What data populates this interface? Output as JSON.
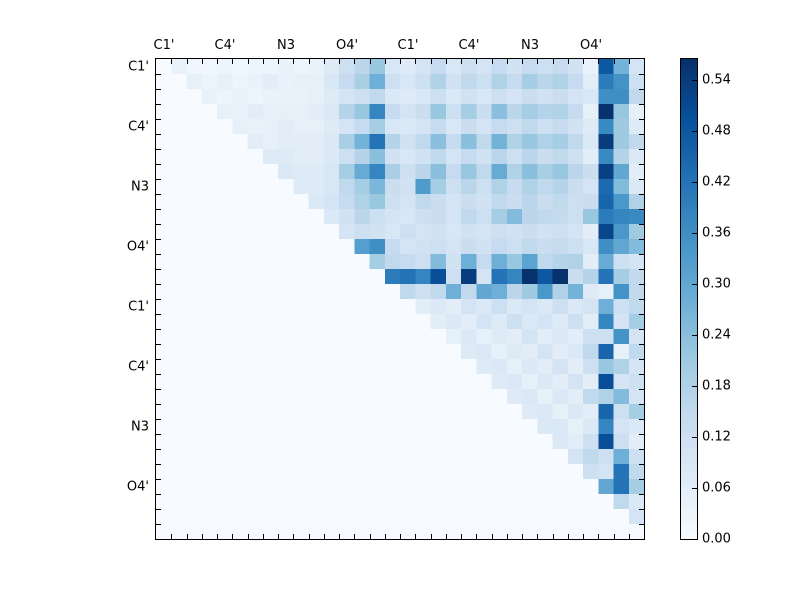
{
  "figure": {
    "background": "#ffffff",
    "border_color": "#000000"
  },
  "chart_data": {
    "type": "heatmap",
    "title": "",
    "xlabel": "",
    "ylabel": "",
    "grid_size": 32,
    "colormap": "Blues",
    "colormap_stops": [
      "#f7fbff",
      "#deebf7",
      "#c6dbef",
      "#9ecae1",
      "#6baed6",
      "#4292c6",
      "#2171b5",
      "#08519c",
      "#08306b"
    ],
    "vmin": 0.0,
    "vmax": 0.565,
    "x_tick_labels": [
      "C1'",
      "C4'",
      "N3",
      "O4'",
      "C1'",
      "C4'",
      "N3",
      "O4'"
    ],
    "y_tick_labels": [
      "C1'",
      "C4'",
      "N3",
      "O4'",
      "C1'",
      "C4'",
      "N3",
      "O4'"
    ],
    "tick_label_cell_positions": [
      0,
      4,
      8,
      12,
      16,
      20,
      24,
      28
    ],
    "minor_ticks_every_cell": true,
    "colorbar": {
      "position": "right",
      "tick_labels": [
        "0.00",
        "0.06",
        "0.12",
        "0.18",
        "0.24",
        "0.30",
        "0.36",
        "0.42",
        "0.48",
        "0.54"
      ],
      "tick_values": [
        0.0,
        0.06,
        0.12,
        0.18,
        0.24,
        0.3,
        0.36,
        0.42,
        0.48,
        0.54
      ]
    },
    "values": [
      [
        0,
        0.04,
        0.02,
        0.02,
        0.03,
        0.02,
        0.03,
        0.03,
        0.04,
        0.03,
        0.04,
        0.07,
        0.12,
        0.16,
        0.22,
        0.09,
        0.07,
        0.1,
        0.14,
        0.09,
        0.12,
        0.1,
        0.14,
        0.11,
        0.14,
        0.12,
        0.14,
        0.11,
        0.04,
        0.48,
        0.27,
        0.1
      ],
      [
        0,
        0,
        0.05,
        0.03,
        0.05,
        0.03,
        0.04,
        0.06,
        0.04,
        0.05,
        0.05,
        0.09,
        0.14,
        0.19,
        0.28,
        0.12,
        0.09,
        0.12,
        0.18,
        0.11,
        0.15,
        0.12,
        0.18,
        0.14,
        0.2,
        0.16,
        0.18,
        0.14,
        0.06,
        0.4,
        0.35,
        0.12
      ],
      [
        0,
        0,
        0,
        0.04,
        0.03,
        0.04,
        0.03,
        0.04,
        0.04,
        0.04,
        0.05,
        0.07,
        0.1,
        0.12,
        0.15,
        0.08,
        0.07,
        0.09,
        0.12,
        0.08,
        0.11,
        0.09,
        0.12,
        0.1,
        0.13,
        0.11,
        0.13,
        0.1,
        0.09,
        0.36,
        0.36,
        0.15
      ],
      [
        0,
        0,
        0,
        0,
        0.05,
        0.04,
        0.06,
        0.05,
        0.05,
        0.05,
        0.06,
        0.08,
        0.17,
        0.22,
        0.38,
        0.14,
        0.1,
        0.13,
        0.22,
        0.12,
        0.2,
        0.13,
        0.24,
        0.16,
        0.2,
        0.17,
        0.18,
        0.14,
        0.05,
        0.56,
        0.22,
        0.05
      ],
      [
        0,
        0,
        0,
        0,
        0,
        0.05,
        0.04,
        0.05,
        0.06,
        0.05,
        0.05,
        0.07,
        0.1,
        0.14,
        0.2,
        0.09,
        0.08,
        0.1,
        0.14,
        0.09,
        0.13,
        0.1,
        0.14,
        0.12,
        0.15,
        0.12,
        0.14,
        0.11,
        0.07,
        0.37,
        0.21,
        0.07
      ],
      [
        0,
        0,
        0,
        0,
        0,
        0,
        0.06,
        0.05,
        0.06,
        0.06,
        0.06,
        0.08,
        0.19,
        0.27,
        0.42,
        0.17,
        0.11,
        0.15,
        0.24,
        0.14,
        0.24,
        0.15,
        0.27,
        0.18,
        0.22,
        0.18,
        0.2,
        0.15,
        0.08,
        0.54,
        0.21,
        0.15
      ],
      [
        0,
        0,
        0,
        0,
        0,
        0,
        0,
        0.07,
        0.07,
        0.06,
        0.06,
        0.08,
        0.12,
        0.17,
        0.24,
        0.11,
        0.09,
        0.11,
        0.15,
        0.1,
        0.14,
        0.11,
        0.16,
        0.12,
        0.16,
        0.13,
        0.15,
        0.12,
        0.06,
        0.37,
        0.17,
        0.08
      ],
      [
        0,
        0,
        0,
        0,
        0,
        0,
        0,
        0,
        0.08,
        0.07,
        0.07,
        0.09,
        0.2,
        0.29,
        0.38,
        0.19,
        0.12,
        0.16,
        0.24,
        0.14,
        0.22,
        0.15,
        0.29,
        0.18,
        0.24,
        0.19,
        0.22,
        0.16,
        0.13,
        0.53,
        0.3,
        0.06
      ],
      [
        0,
        0,
        0,
        0,
        0,
        0,
        0,
        0,
        0,
        0.07,
        0.07,
        0.09,
        0.15,
        0.2,
        0.26,
        0.13,
        0.11,
        0.33,
        0.2,
        0.12,
        0.16,
        0.12,
        0.18,
        0.14,
        0.18,
        0.15,
        0.17,
        0.13,
        0.1,
        0.44,
        0.25,
        0.08
      ],
      [
        0,
        0,
        0,
        0,
        0,
        0,
        0,
        0,
        0,
        0,
        0.08,
        0.1,
        0.14,
        0.18,
        0.22,
        0.12,
        0.1,
        0.15,
        0.13,
        0.1,
        0.13,
        0.11,
        0.15,
        0.13,
        0.16,
        0.13,
        0.15,
        0.12,
        0.13,
        0.45,
        0.34,
        0.18
      ],
      [
        0,
        0,
        0,
        0,
        0,
        0,
        0,
        0,
        0,
        0,
        0,
        0.08,
        0.11,
        0.16,
        0.12,
        0.1,
        0.09,
        0.12,
        0.13,
        0.1,
        0.15,
        0.12,
        0.2,
        0.25,
        0.16,
        0.15,
        0.14,
        0.12,
        0.22,
        0.4,
        0.38,
        0.37
      ],
      [
        0,
        0,
        0,
        0,
        0,
        0,
        0,
        0,
        0,
        0,
        0,
        0,
        0.1,
        0.12,
        0.11,
        0.09,
        0.12,
        0.1,
        0.11,
        0.09,
        0.11,
        0.1,
        0.12,
        0.11,
        0.13,
        0.11,
        0.12,
        0.1,
        0.06,
        0.52,
        0.34,
        0.21
      ],
      [
        0,
        0,
        0,
        0,
        0,
        0,
        0,
        0,
        0,
        0,
        0,
        0,
        0,
        0.32,
        0.36,
        0.14,
        0.1,
        0.11,
        0.12,
        0.1,
        0.13,
        0.11,
        0.14,
        0.12,
        0.15,
        0.13,
        0.14,
        0.12,
        0.09,
        0.36,
        0.3,
        0.25
      ],
      [
        0,
        0,
        0,
        0,
        0,
        0,
        0,
        0,
        0,
        0,
        0,
        0,
        0,
        0,
        0.2,
        0.15,
        0.14,
        0.12,
        0.25,
        0.11,
        0.28,
        0.14,
        0.28,
        0.22,
        0.31,
        0.15,
        0.17,
        0.18,
        0.06,
        0.29,
        0.12,
        0.1
      ],
      [
        0,
        0,
        0,
        0,
        0,
        0,
        0,
        0,
        0,
        0,
        0,
        0,
        0,
        0,
        0,
        0.4,
        0.42,
        0.38,
        0.5,
        0.12,
        0.54,
        0.1,
        0.42,
        0.38,
        0.56,
        0.48,
        0.56,
        0.13,
        0.17,
        0.42,
        0.2,
        0.15
      ],
      [
        0,
        0,
        0,
        0,
        0,
        0,
        0,
        0,
        0,
        0,
        0,
        0,
        0,
        0,
        0,
        0,
        0.15,
        0.12,
        0.15,
        0.28,
        0.15,
        0.3,
        0.28,
        0.16,
        0.21,
        0.34,
        0.18,
        0.27,
        0.07,
        0.05,
        0.35,
        0.15
      ],
      [
        0,
        0,
        0,
        0,
        0,
        0,
        0,
        0,
        0,
        0,
        0,
        0,
        0,
        0,
        0,
        0,
        0,
        0.06,
        0.08,
        0.06,
        0.1,
        0.08,
        0.12,
        0.08,
        0.1,
        0.08,
        0.12,
        0.08,
        0.1,
        0.28,
        0.12,
        0.15
      ],
      [
        0,
        0,
        0,
        0,
        0,
        0,
        0,
        0,
        0,
        0,
        0,
        0,
        0,
        0,
        0,
        0,
        0,
        0,
        0.06,
        0.08,
        0.06,
        0.1,
        0.07,
        0.12,
        0.08,
        0.1,
        0.07,
        0.12,
        0.06,
        0.38,
        0.1,
        0.2
      ],
      [
        0,
        0,
        0,
        0,
        0,
        0,
        0,
        0,
        0,
        0,
        0,
        0,
        0,
        0,
        0,
        0,
        0,
        0,
        0,
        0.05,
        0.08,
        0.05,
        0.07,
        0.06,
        0.1,
        0.06,
        0.08,
        0.06,
        0.12,
        0.12,
        0.35,
        0.1
      ],
      [
        0,
        0,
        0,
        0,
        0,
        0,
        0,
        0,
        0,
        0,
        0,
        0,
        0,
        0,
        0,
        0,
        0,
        0,
        0,
        0,
        0.07,
        0.08,
        0.05,
        0.07,
        0.06,
        0.1,
        0.06,
        0.08,
        0.15,
        0.45,
        0.05,
        0.15
      ],
      [
        0,
        0,
        0,
        0,
        0,
        0,
        0,
        0,
        0,
        0,
        0,
        0,
        0,
        0,
        0,
        0,
        0,
        0,
        0,
        0,
        0,
        0.07,
        0.08,
        0.05,
        0.08,
        0.06,
        0.1,
        0.06,
        0.12,
        0.22,
        0.18,
        0.1
      ],
      [
        0,
        0,
        0,
        0,
        0,
        0,
        0,
        0,
        0,
        0,
        0,
        0,
        0,
        0,
        0,
        0,
        0,
        0,
        0,
        0,
        0,
        0,
        0.07,
        0.08,
        0.05,
        0.08,
        0.06,
        0.1,
        0.06,
        0.5,
        0.1,
        0.12
      ],
      [
        0,
        0,
        0,
        0,
        0,
        0,
        0,
        0,
        0,
        0,
        0,
        0,
        0,
        0,
        0,
        0,
        0,
        0,
        0,
        0,
        0,
        0,
        0,
        0.07,
        0.08,
        0.05,
        0.08,
        0.06,
        0.15,
        0.18,
        0.25,
        0.1
      ],
      [
        0,
        0,
        0,
        0,
        0,
        0,
        0,
        0,
        0,
        0,
        0,
        0,
        0,
        0,
        0,
        0,
        0,
        0,
        0,
        0,
        0,
        0,
        0,
        0,
        0.07,
        0.08,
        0.05,
        0.08,
        0.06,
        0.45,
        0.12,
        0.2
      ],
      [
        0,
        0,
        0,
        0,
        0,
        0,
        0,
        0,
        0,
        0,
        0,
        0,
        0,
        0,
        0,
        0,
        0,
        0,
        0,
        0,
        0,
        0,
        0,
        0,
        0,
        0.08,
        0.08,
        0.05,
        0.08,
        0.38,
        0.1,
        0.08
      ],
      [
        0,
        0,
        0,
        0,
        0,
        0,
        0,
        0,
        0,
        0,
        0,
        0,
        0,
        0,
        0,
        0,
        0,
        0,
        0,
        0,
        0,
        0,
        0,
        0,
        0,
        0,
        0.08,
        0.06,
        0.12,
        0.5,
        0.12,
        0.06
      ],
      [
        0,
        0,
        0,
        0,
        0,
        0,
        0,
        0,
        0,
        0,
        0,
        0,
        0,
        0,
        0,
        0,
        0,
        0,
        0,
        0,
        0,
        0,
        0,
        0,
        0,
        0,
        0,
        0.1,
        0.15,
        0.12,
        0.28,
        0.12
      ],
      [
        0,
        0,
        0,
        0,
        0,
        0,
        0,
        0,
        0,
        0,
        0,
        0,
        0,
        0,
        0,
        0,
        0,
        0,
        0,
        0,
        0,
        0,
        0,
        0,
        0,
        0,
        0,
        0,
        0.12,
        0.1,
        0.42,
        0.15
      ],
      [
        0,
        0,
        0,
        0,
        0,
        0,
        0,
        0,
        0,
        0,
        0,
        0,
        0,
        0,
        0,
        0,
        0,
        0,
        0,
        0,
        0,
        0,
        0,
        0,
        0,
        0,
        0,
        0,
        0,
        0.3,
        0.42,
        0.2
      ],
      [
        0,
        0,
        0,
        0,
        0,
        0,
        0,
        0,
        0,
        0,
        0,
        0,
        0,
        0,
        0,
        0,
        0,
        0,
        0,
        0,
        0,
        0,
        0,
        0,
        0,
        0,
        0,
        0,
        0,
        0,
        0.15,
        0.08
      ],
      [
        0,
        0,
        0,
        0,
        0,
        0,
        0,
        0,
        0,
        0,
        0,
        0,
        0,
        0,
        0,
        0,
        0,
        0,
        0,
        0,
        0,
        0,
        0,
        0,
        0,
        0,
        0,
        0,
        0,
        0,
        0,
        0.1
      ],
      [
        0,
        0,
        0,
        0,
        0,
        0,
        0,
        0,
        0,
        0,
        0,
        0,
        0,
        0,
        0,
        0,
        0,
        0,
        0,
        0,
        0,
        0,
        0,
        0,
        0,
        0,
        0,
        0,
        0,
        0,
        0,
        0
      ]
    ]
  }
}
